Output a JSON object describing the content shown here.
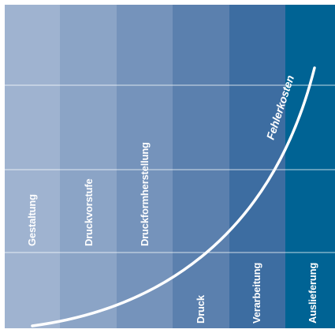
{
  "columns": [
    {
      "label": "Gestaltung",
      "color": "#9fb3d0"
    },
    {
      "label": "Druckvorstufe",
      "color": "#8ba4c6"
    },
    {
      "label": "Druckformherstellung",
      "color": "#7593bb"
    },
    {
      "label": "Druck",
      "color": "#5b80ae"
    },
    {
      "label": "Verarbeitung",
      "color": "#3d6da1"
    },
    {
      "label": "Auslieferung",
      "color": "#006394"
    }
  ],
  "curve": {
    "label": "Fehlerkosten",
    "color": "#ffffff"
  },
  "gridline_color": "#ffffff"
}
